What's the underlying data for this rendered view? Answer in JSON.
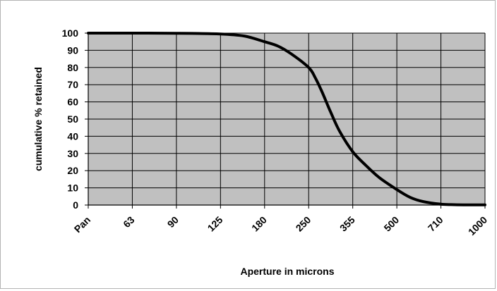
{
  "chart_data": {
    "type": "line",
    "title": "",
    "xlabel": "Aperture in microns",
    "ylabel": "cumulative % retained",
    "categories": [
      "Pan",
      "63",
      "90",
      "125",
      "180",
      "250",
      "355",
      "500",
      "710",
      "1000"
    ],
    "ylim": [
      0,
      100
    ],
    "yticks": [
      0,
      10,
      20,
      30,
      40,
      50,
      60,
      70,
      80,
      90,
      100
    ],
    "grid": true,
    "legend": "none",
    "series": [
      {
        "name": "",
        "x": [
          0,
          1,
          2,
          2.5,
          3,
          3.3,
          3.6,
          4,
          4.3,
          4.6,
          5,
          5.15,
          5.3,
          5.5,
          5.7,
          6,
          6.3,
          6.6,
          7,
          7.3,
          7.6,
          8,
          8.3,
          8.6,
          9
        ],
        "values": [
          100,
          100,
          99.9,
          99.8,
          99.5,
          99,
          98,
          95,
          92.5,
          88,
          80,
          74,
          66,
          54,
          43,
          31,
          23,
          16,
          9,
          4.5,
          2,
          0.5,
          0.2,
          0.1,
          0.1
        ]
      }
    ],
    "colors": {
      "plot_background": "#c0c0c0",
      "line": "#000000",
      "grid": "#000000",
      "axis": "#000000"
    }
  }
}
